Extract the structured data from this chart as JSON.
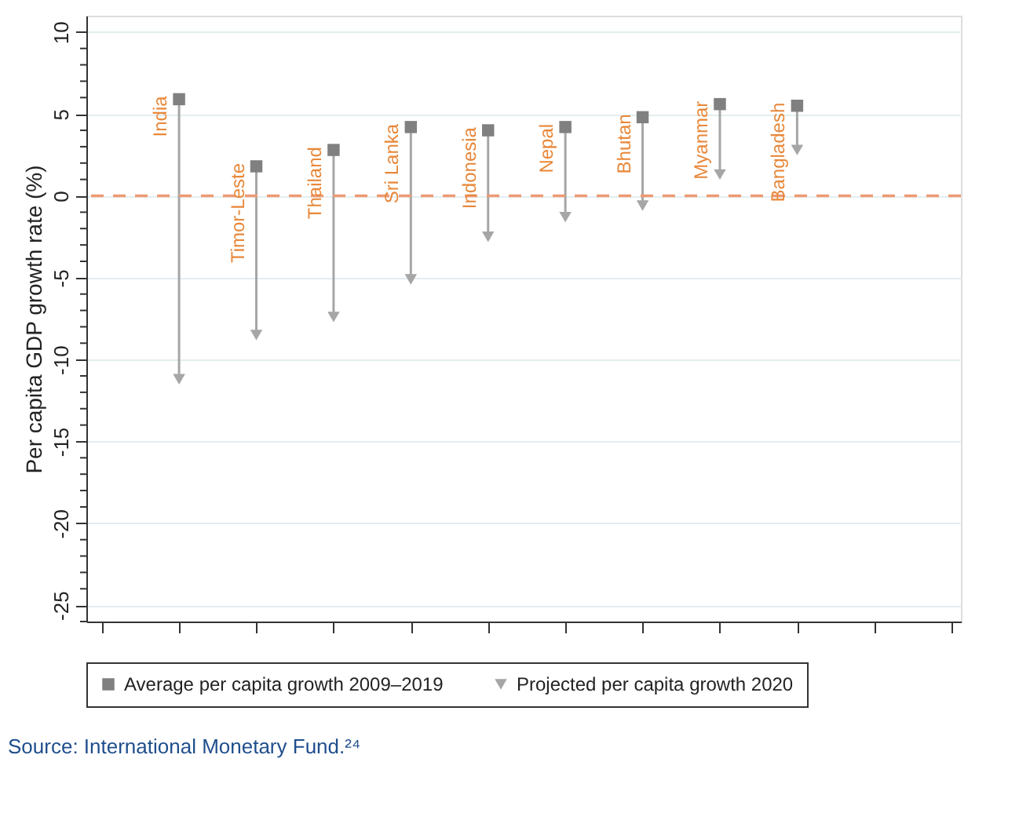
{
  "chart_data": {
    "type": "scatter",
    "ylabel": "Per capita GDP growth rate (%)",
    "categories": [
      null,
      "India",
      "Timor-Leste",
      "Thailand",
      "Sri Lanka",
      "Indonesia",
      "Nepal",
      "Bhutan",
      "Myanmar",
      "Bangladesh",
      null,
      null
    ],
    "series": [
      {
        "name": "Average per capita growth 2009–2019",
        "marker": "square",
        "color": "#808080",
        "values": [
          null,
          5.9,
          1.8,
          2.8,
          4.2,
          4.0,
          4.2,
          4.8,
          5.6,
          5.5,
          null,
          null
        ]
      },
      {
        "name": "Projected per capita growth 2020",
        "marker": "triangle",
        "color": "#a6a6a6",
        "values": [
          null,
          -11.2,
          -8.5,
          -7.4,
          -5.1,
          -2.5,
          -1.3,
          -0.6,
          1.3,
          2.8,
          null,
          null
        ]
      }
    ],
    "ylim": [
      -26,
      11
    ],
    "yticks": [
      {
        "value": -26,
        "label": null
      },
      -25,
      {
        "value": -24,
        "label": null
      },
      {
        "value": -23,
        "label": null
      },
      {
        "value": -22,
        "label": null
      },
      {
        "value": -21,
        "label": null
      },
      -20,
      {
        "value": -19,
        "label": null
      },
      {
        "value": -18,
        "label": null
      },
      {
        "value": -17,
        "label": null
      },
      {
        "value": -16,
        "label": null
      },
      -15,
      {
        "value": -14,
        "label": null
      },
      {
        "value": -13,
        "label": null
      },
      {
        "value": -12,
        "label": null
      },
      {
        "value": -11,
        "label": null
      },
      -10,
      {
        "value": -9,
        "label": null
      },
      {
        "value": -8,
        "label": null
      },
      {
        "value": -7,
        "label": null
      },
      {
        "value": -6,
        "label": null
      },
      -5,
      {
        "value": -4,
        "label": null
      },
      {
        "value": -3,
        "label": null
      },
      {
        "value": -2,
        "label": null
      },
      {
        "value": -1,
        "label": null
      },
      0,
      {
        "value": 1,
        "label": null
      },
      {
        "value": 2,
        "label": null
      },
      {
        "value": 3,
        "label": null
      },
      {
        "value": 4,
        "label": null
      },
      5,
      {
        "value": 6,
        "label": null
      },
      {
        "value": 7,
        "label": null
      },
      {
        "value": 8,
        "label": null
      },
      {
        "value": 9,
        "label": null
      },
      10
    ],
    "ref_lines": [
      {
        "axis": "y",
        "value": 0,
        "color": "#ef9a73",
        "line_style": "dashed"
      }
    ],
    "grid": "y",
    "legend": "bottom",
    "tick_labels": "y",
    "annotations": [
      "Source: International Monetary Fund.²⁴"
    ]
  }
}
